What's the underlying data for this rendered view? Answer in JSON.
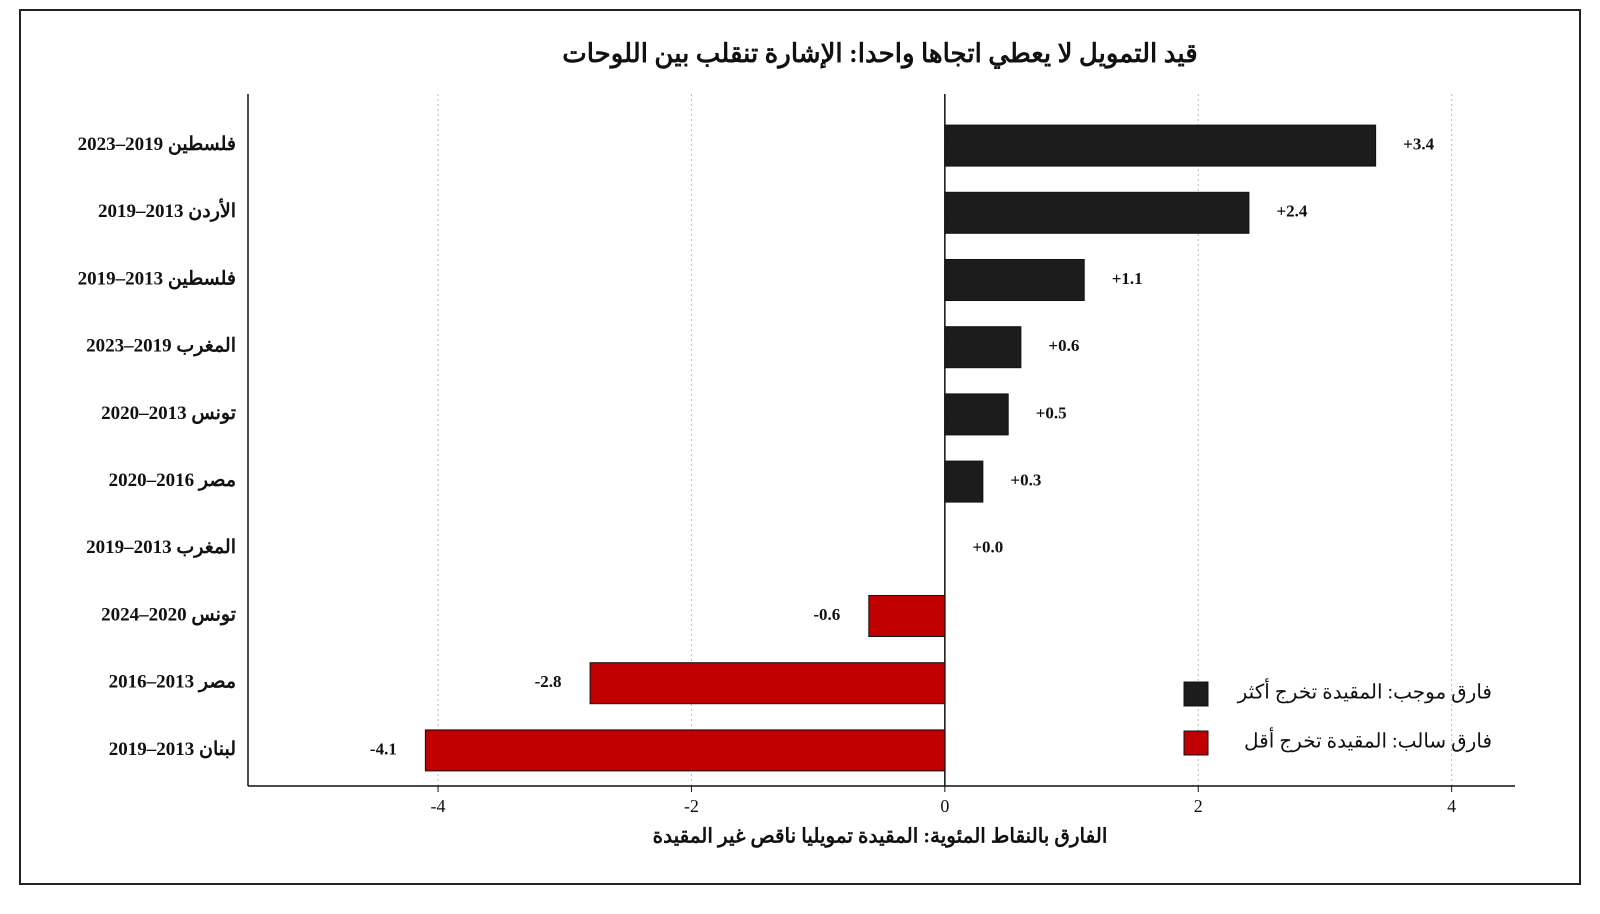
{
  "chart_data": {
    "type": "barh",
    "title": "قيد التمويل لا يعطي اتجاها واحدا: الإشارة تنقلب بين اللوحات",
    "x_label": "الفارق بالنقاط المئوية: المقيدة تمويليا ناقص غير المقيدة",
    "categories": [
      "فلسطين 2019–2023",
      "الأردن 2013–2019",
      "فلسطين 2013–2019",
      "المغرب 2019–2023",
      "تونس 2013–2020",
      "مصر 2016–2020",
      "المغرب 2013–2019",
      "تونس 2020–2024",
      "مصر 2013–2016",
      "لبنان 2013–2019"
    ],
    "series": [
      {
        "name": "فارق موجب: المقيدة تخرج أكثر",
        "color": "#1c1c1c",
        "values": [
          3.4,
          2.4,
          1.1,
          0.6,
          0.5,
          0.3,
          0.0,
          null,
          null,
          null
        ],
        "value_labels": [
          "+3.4",
          "+2.4",
          "+1.1",
          "+0.6",
          "+0.5",
          "+0.3",
          "+0.0",
          null,
          null,
          null
        ]
      },
      {
        "name": "فارق سالب: المقيدة تخرج أقل",
        "color": "#c00000",
        "values": [
          null,
          null,
          null,
          null,
          null,
          null,
          null,
          -0.6,
          -2.8,
          -4.1
        ],
        "value_labels": [
          null,
          null,
          null,
          null,
          null,
          null,
          null,
          "-0.6",
          "-2.8",
          "-4.1"
        ]
      }
    ],
    "xlim": [
      -5.5,
      4.5
    ],
    "xticks": [
      -4,
      -2,
      0,
      2,
      4
    ],
    "grid": true,
    "legend": "lower right"
  }
}
